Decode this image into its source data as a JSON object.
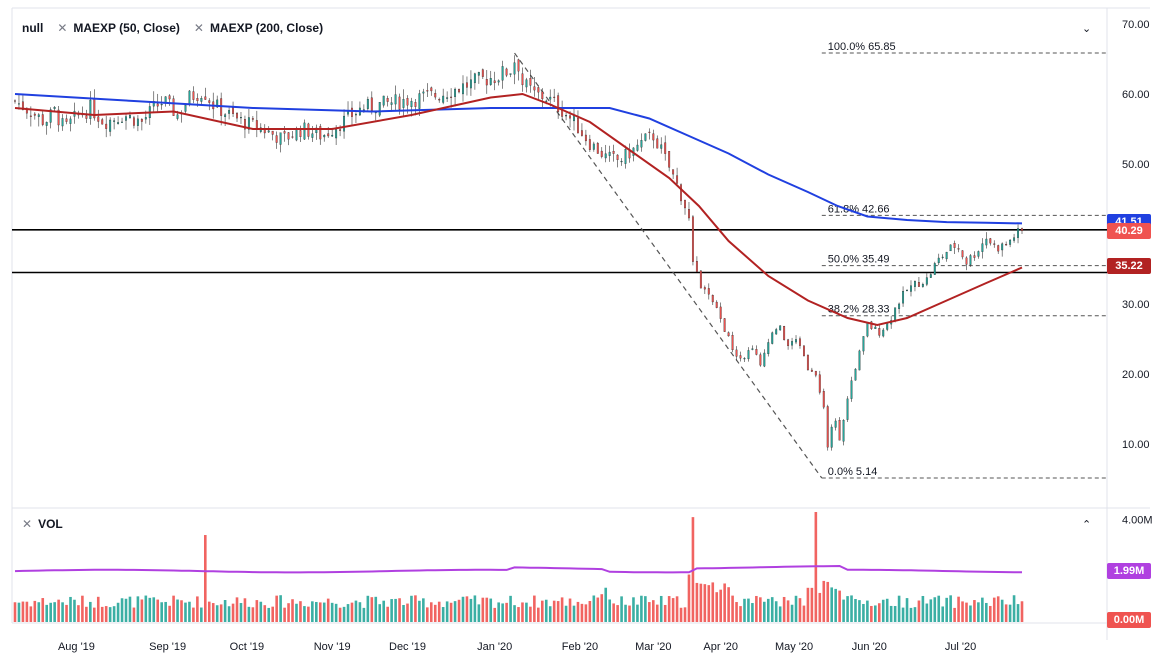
{
  "legend": {
    "symbol": "null",
    "ma1_label": "MAEXP (50, Close)",
    "ma2_label": "MAEXP (200, Close)",
    "volume_label": "VOL"
  },
  "icons": {
    "remove": "✕",
    "collapse": "⌄",
    "expand": "⌃"
  },
  "colors": {
    "up": "#26a69a",
    "down": "#ef5350",
    "ma50": "#b22222",
    "ma200": "#2040e0",
    "volume_ma": "#b040e0",
    "price_tag": "#ef5350",
    "volume_tag": "#b040e0"
  },
  "price_tags": {
    "ma200": "41.51",
    "last": "40.29",
    "ma50": "35.22"
  },
  "volume_tags": {
    "avg": "1.99M",
    "zero": "0.00M"
  },
  "chart_data": {
    "type": "candlestick",
    "x_ticks": [
      "Aug '19",
      "Sep '19",
      "Oct '19",
      "Nov '19",
      "Dec '19",
      "Jan '20",
      "Feb '20",
      "Mar '20",
      "Apr '20",
      "May '20",
      "Jun '20",
      "Jul '20"
    ],
    "y_ticks": [
      "70.00",
      "60.00",
      "50.00",
      "40.00",
      "30.00",
      "20.00",
      "10.00"
    ],
    "ylim": [
      0,
      72
    ],
    "volume_ticks": [
      "4.00M"
    ],
    "volume_ylim": [
      0,
      4.3
    ],
    "horizontal_lines": [
      40.6,
      34.5
    ],
    "fibonacci": [
      {
        "label": "100.0% 65.85",
        "level": 65.85
      },
      {
        "label": "61.8% 42.66",
        "level": 42.66
      },
      {
        "label": "50.0% 35.49",
        "level": 35.49
      },
      {
        "label": "38.2% 28.33",
        "level": 28.33
      },
      {
        "label": "0.0% 5.14",
        "level": 5.14
      }
    ],
    "trend_line": {
      "from": [
        "Jan '20",
        65.85
      ],
      "to": [
        "May '20",
        5.14
      ]
    },
    "close_path": [
      [
        0,
        59.0
      ],
      [
        8,
        57.5
      ],
      [
        15,
        56.0
      ],
      [
        20,
        57.5
      ],
      [
        25,
        55.0
      ],
      [
        30,
        56.5
      ],
      [
        38,
        58.0
      ],
      [
        45,
        56.0
      ],
      [
        55,
        57.0
      ],
      [
        64,
        56.0
      ],
      [
        70,
        58.0
      ],
      [
        75,
        59.0
      ],
      [
        82,
        57.0
      ],
      [
        88,
        59.5
      ],
      [
        95,
        60.5
      ],
      [
        100,
        58.5
      ],
      [
        108,
        57.0
      ],
      [
        115,
        56.0
      ],
      [
        125,
        55.0
      ],
      [
        135,
        53.5
      ],
      [
        145,
        55.0
      ],
      [
        155,
        54.0
      ],
      [
        165,
        56.0
      ],
      [
        175,
        58.0
      ],
      [
        185,
        58.5
      ],
      [
        195,
        59.0
      ],
      [
        205,
        59.5
      ],
      [
        215,
        60.0
      ],
      [
        225,
        61.0
      ],
      [
        235,
        62.0
      ],
      [
        243,
        62.5
      ],
      [
        250,
        63.5
      ],
      [
        253,
        65.5
      ],
      [
        256,
        61.5
      ],
      [
        262,
        60.0
      ],
      [
        268,
        59.5
      ],
      [
        275,
        58.0
      ],
      [
        282,
        56.0
      ],
      [
        290,
        53.0
      ],
      [
        298,
        51.0
      ],
      [
        305,
        50.5
      ],
      [
        312,
        52.0
      ],
      [
        318,
        53.5
      ],
      [
        322,
        54.0
      ],
      [
        326,
        52.0
      ],
      [
        330,
        49.5
      ],
      [
        334,
        47.0
      ],
      [
        338,
        44.0
      ],
      [
        340,
        42.0
      ],
      [
        342,
        36.0
      ],
      [
        345,
        33.0
      ],
      [
        350,
        31.0
      ],
      [
        355,
        28.5
      ],
      [
        360,
        25.0
      ],
      [
        363,
        23.0
      ],
      [
        368,
        22.5
      ],
      [
        372,
        24.0
      ],
      [
        376,
        21.0
      ],
      [
        380,
        25.0
      ],
      [
        385,
        27.0
      ],
      [
        390,
        24.0
      ],
      [
        395,
        25.0
      ],
      [
        400,
        21.0
      ],
      [
        405,
        19.0
      ],
      [
        408,
        15.0
      ],
      [
        410,
        10.0
      ],
      [
        413,
        14.0
      ],
      [
        416,
        11.0
      ],
      [
        419,
        15.0
      ],
      [
        422,
        19.0
      ],
      [
        426,
        23.0
      ],
      [
        430,
        27.0
      ],
      [
        436,
        26.0
      ],
      [
        441,
        27.5
      ],
      [
        445,
        30.0
      ],
      [
        450,
        32.0
      ],
      [
        455,
        33.0
      ],
      [
        460,
        33.5
      ],
      [
        465,
        36.0
      ],
      [
        470,
        37.5
      ],
      [
        475,
        38.5
      ],
      [
        480,
        36.0
      ],
      [
        485,
        37.5
      ],
      [
        490,
        39.5
      ],
      [
        495,
        38.0
      ],
      [
        500,
        38.5
      ],
      [
        505,
        40.0
      ],
      [
        508,
        40.29
      ]
    ],
    "ma50_path": [
      [
        0,
        58.0
      ],
      [
        40,
        57.0
      ],
      [
        80,
        57.5
      ],
      [
        120,
        55.0
      ],
      [
        160,
        55.0
      ],
      [
        200,
        57.0
      ],
      [
        240,
        59.5
      ],
      [
        256,
        60.0
      ],
      [
        270,
        58.5
      ],
      [
        290,
        56.0
      ],
      [
        310,
        52.0
      ],
      [
        330,
        48.0
      ],
      [
        345,
        44.0
      ],
      [
        360,
        39.0
      ],
      [
        380,
        34.0
      ],
      [
        400,
        30.5
      ],
      [
        420,
        28.0
      ],
      [
        435,
        27.0
      ],
      [
        450,
        28.0
      ],
      [
        470,
        30.5
      ],
      [
        490,
        33.0
      ],
      [
        508,
        35.22
      ]
    ],
    "ma200_path": [
      [
        0,
        60.0
      ],
      [
        60,
        59.0
      ],
      [
        120,
        58.0
      ],
      [
        180,
        57.5
      ],
      [
        240,
        58.0
      ],
      [
        265,
        58.0
      ],
      [
        300,
        58.0
      ],
      [
        320,
        56.5
      ],
      [
        340,
        54.0
      ],
      [
        360,
        51.5
      ],
      [
        380,
        48.5
      ],
      [
        400,
        46.0
      ],
      [
        415,
        44.0
      ],
      [
        430,
        42.5
      ],
      [
        450,
        42.0
      ],
      [
        470,
        41.7
      ],
      [
        490,
        41.6
      ],
      [
        508,
        41.51
      ]
    ],
    "volume_avg": 1.99
  }
}
